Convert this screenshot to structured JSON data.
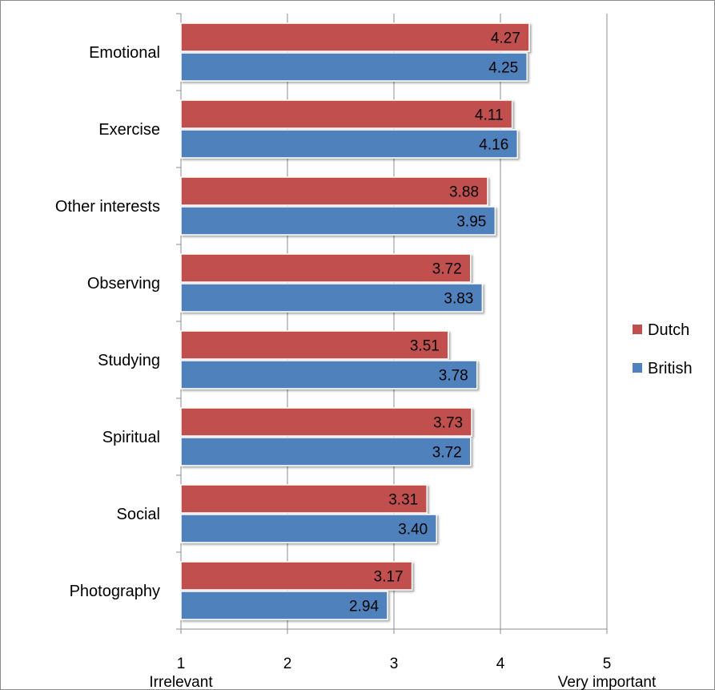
{
  "chart_data": {
    "type": "bar",
    "orientation": "horizontal",
    "categories": [
      "Emotional",
      "Exercise",
      "Other interests",
      "Observing",
      "Studying",
      "Spiritual",
      "Social",
      "Photography"
    ],
    "series": [
      {
        "name": "Dutch",
        "color": "#c0504d",
        "values": [
          4.27,
          4.11,
          3.88,
          3.72,
          3.51,
          3.73,
          3.31,
          3.17
        ],
        "labels": [
          "4.27",
          "4.11",
          "3.88",
          "3.72",
          "3.51",
          "3.73",
          "3.31",
          "3.17"
        ]
      },
      {
        "name": "British",
        "color": "#4f81bd",
        "values": [
          4.25,
          4.16,
          3.95,
          3.83,
          3.78,
          3.72,
          3.4,
          2.94
        ],
        "labels": [
          "4.25",
          "4.16",
          "3.95",
          "3.83",
          "3.78",
          "3.72",
          "3.40",
          "2.94"
        ]
      }
    ],
    "xlim": [
      1,
      5
    ],
    "xticks": [
      1,
      2,
      3,
      4,
      5
    ],
    "xtick_labels": [
      "1",
      "2",
      "3",
      "4",
      "5"
    ],
    "xtick_sublabels": {
      "1": "Irrelevant",
      "5": "Very important"
    },
    "grid": "vertical",
    "legend": "right"
  }
}
